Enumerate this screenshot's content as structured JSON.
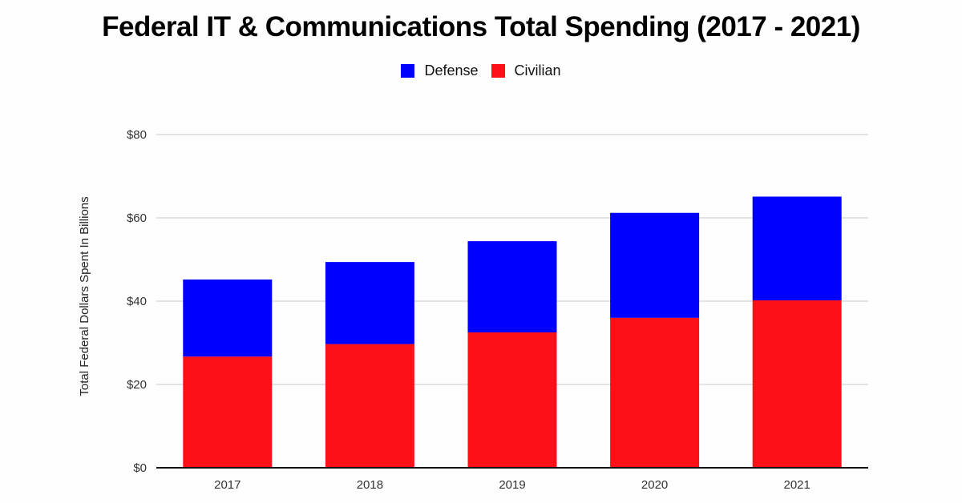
{
  "chart_data": {
    "type": "bar",
    "stacked": true,
    "title": "Federal IT & Communications Total Spending (2017 - 2021)",
    "xlabel": "",
    "ylabel": "Total Federal Dollars Spent In Billions",
    "categories": [
      "2017",
      "2018",
      "2019",
      "2020",
      "2021"
    ],
    "series": [
      {
        "name": "Civilian",
        "color": "#fd1119",
        "values": [
          26.7,
          29.7,
          32.5,
          36.0,
          40.2
        ]
      },
      {
        "name": "Defense",
        "color": "#0000fe",
        "values": [
          18.5,
          19.7,
          21.9,
          25.2,
          24.9
        ]
      }
    ],
    "legend": {
      "position": "top-center",
      "entries": [
        {
          "name": "Defense",
          "color": "#0000fe"
        },
        {
          "name": "Civilian",
          "color": "#fd1119"
        }
      ]
    },
    "ylim": [
      0,
      80
    ],
    "yticks": [
      0,
      20,
      40,
      60,
      80
    ],
    "ytick_labels": [
      "$0",
      "$20",
      "$40",
      "$60",
      "$80"
    ],
    "grid": true
  }
}
